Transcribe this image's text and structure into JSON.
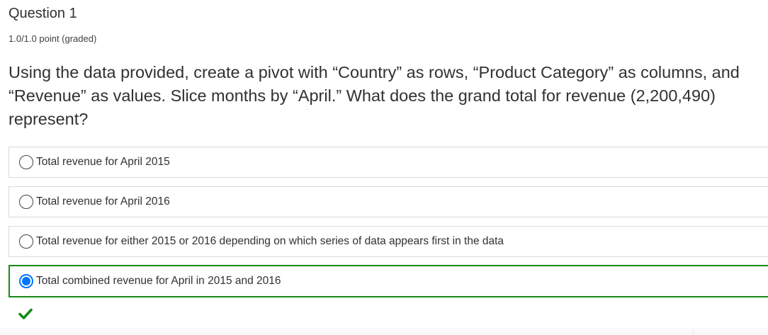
{
  "problem": {
    "title": "Question 1",
    "progress": "1.0/1.0 point (graded)",
    "question": "Using the data provided, create a pivot with “Country” as rows, “Product Category” as columns, and “Revenue” as values. Slice months by “April.” What does the grand total for revenue (2,200,490) represent?",
    "choices": [
      {
        "label": "Total revenue for April 2015",
        "selected": false
      },
      {
        "label": "Total revenue for April 2016",
        "selected": false
      },
      {
        "label": "Total revenue for either 2015 or 2016 depending on which series of data appears first in the data",
        "selected": false
      },
      {
        "label": "Total combined revenue for April in 2015 and 2016",
        "selected": true
      }
    ],
    "status_icon": "checkmark-icon",
    "colors": {
      "correct": "#178a17",
      "radio_selected": "#0075ff",
      "border": "#d9d9d9",
      "text": "#313131"
    }
  }
}
